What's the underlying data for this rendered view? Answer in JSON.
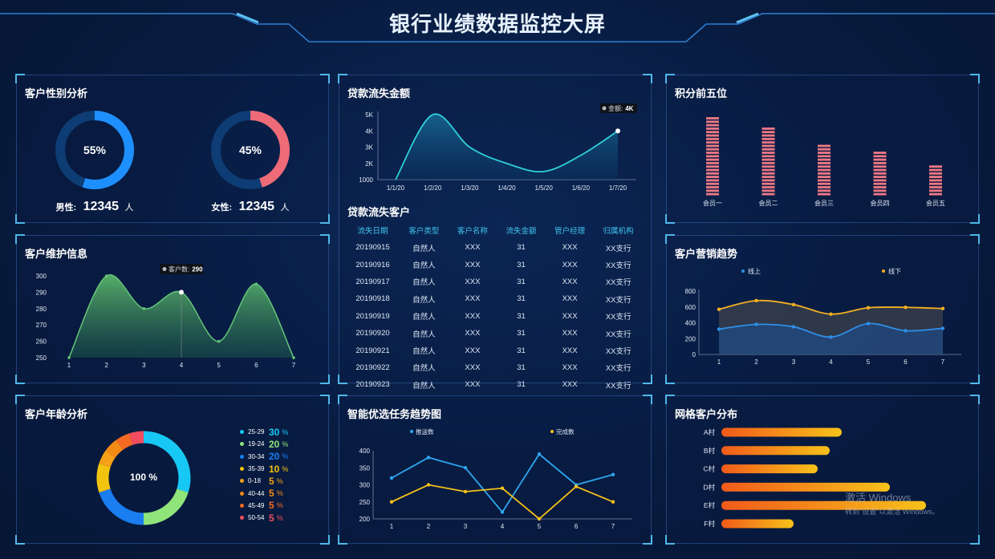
{
  "title": "银行业绩数据监控大屏",
  "gender": {
    "title": "客户性别分析",
    "male": {
      "percent": "55%",
      "label": "男性:",
      "count": "12345",
      "unit": "人",
      "fraction": 0.55,
      "color": "#1e8fff"
    },
    "female": {
      "percent": "45%",
      "label": "女性:",
      "count": "12345",
      "unit": "人",
      "fraction": 0.45,
      "color": "#f06b78"
    }
  },
  "maintenance": {
    "title": "客户维护信息",
    "tooltip": {
      "label": "客户数:",
      "value": "290"
    }
  },
  "age": {
    "title": "客户年龄分析",
    "center": "100 %",
    "items": [
      {
        "label": "25-29",
        "value": "30",
        "unit": "%",
        "color": "#17c8f4",
        "share": 30
      },
      {
        "label": "19-24",
        "value": "20",
        "unit": "%",
        "color": "#8fe57a",
        "share": 20
      },
      {
        "label": "30-34",
        "value": "20",
        "unit": "%",
        "color": "#1a7df0",
        "share": 20
      },
      {
        "label": "35-39",
        "value": "10",
        "unit": "%",
        "color": "#f2c40f",
        "share": 10
      },
      {
        "label": "0-18",
        "value": "5",
        "unit": "%",
        "color": "#f5a017",
        "share": 5
      },
      {
        "label": "40-44",
        "value": "5",
        "unit": "%",
        "color": "#f58b17",
        "share": 5
      },
      {
        "label": "45-49",
        "value": "5",
        "unit": "%",
        "color": "#f56a22",
        "share": 5
      },
      {
        "label": "50-54",
        "value": "5",
        "unit": "%",
        "color": "#f24d5f",
        "share": 5
      }
    ]
  },
  "loan_amount": {
    "title": "贷款流失金额",
    "tooltip": {
      "label": "金额:",
      "value": "4K"
    }
  },
  "loan_customers": {
    "title": "贷款流失客户",
    "columns": [
      "流失日期",
      "客户类型",
      "客户名称",
      "流失金额",
      "管户经理",
      "归属机构"
    ],
    "rows": [
      [
        "20190915",
        "自然人",
        "XXX",
        "31",
        "XXX",
        "XX支行"
      ],
      [
        "20190916",
        "自然人",
        "XXX",
        "31",
        "XXX",
        "XX支行"
      ],
      [
        "20190917",
        "自然人",
        "XXX",
        "31",
        "XXX",
        "XX支行"
      ],
      [
        "20190918",
        "自然人",
        "XXX",
        "31",
        "XXX",
        "XX支行"
      ],
      [
        "20190919",
        "自然人",
        "XXX",
        "31",
        "XXX",
        "XX支行"
      ],
      [
        "20190920",
        "自然人",
        "XXX",
        "31",
        "XXX",
        "XX支行"
      ],
      [
        "20190921",
        "自然人",
        "XXX",
        "31",
        "XXX",
        "XX支行"
      ],
      [
        "20190922",
        "自然人",
        "XXX",
        "31",
        "XXX",
        "XX支行"
      ],
      [
        "20190923",
        "自然人",
        "XXX",
        "31",
        "XXX",
        "XX支行"
      ]
    ]
  },
  "task_trend": {
    "title": "智能优选任务趋势图"
  },
  "points": {
    "title": "积分前五位"
  },
  "marketing": {
    "title": "客户营销趋势"
  },
  "grid": {
    "title": "网格客户分布"
  },
  "watermark": {
    "line1": "激活 Windows",
    "line2": "转到\"设置\"以激活 Windows。"
  },
  "chart_data": [
    {
      "type": "area",
      "panel": "maintenance",
      "x": [
        1,
        2,
        3,
        4,
        5,
        6,
        7
      ],
      "series": [
        {
          "values": [
            250,
            300,
            280,
            290,
            260,
            295,
            250
          ]
        }
      ],
      "ylim": [
        250,
        300
      ],
      "yticks": [
        250,
        260,
        270,
        280,
        290,
        300
      ],
      "color": "#64c47a"
    },
    {
      "type": "area",
      "panel": "loan_amount",
      "categories": [
        "1/1/20",
        "1/2/20",
        "1/3/20",
        "1/4/20",
        "1/5/20",
        "1/6/20",
        "1/7/20"
      ],
      "series": [
        {
          "values": [
            1000,
            5000,
            3000,
            2000,
            1500,
            2500,
            4000
          ]
        }
      ],
      "ylim": [
        1000,
        5000
      ],
      "yticks": [
        "1000",
        "2K",
        "3K",
        "4K",
        "5K"
      ],
      "color": "#2fd0d8"
    },
    {
      "type": "line",
      "panel": "task_trend",
      "x": [
        1,
        2,
        3,
        4,
        5,
        6,
        7
      ],
      "series": [
        {
          "name": "推送数",
          "values": [
            320,
            380,
            350,
            220,
            390,
            300,
            330
          ],
          "color": "#2ea7f0"
        },
        {
          "name": "完成数",
          "values": [
            250,
            300,
            280,
            290,
            200,
            295,
            250
          ],
          "color": "#f7c21a"
        }
      ],
      "ylim": [
        200,
        400
      ],
      "yticks": [
        200,
        250,
        300,
        350,
        400
      ]
    },
    {
      "type": "bar",
      "panel": "points",
      "categories": [
        "会员一",
        "会员二",
        "会员三",
        "会员四",
        "会员五"
      ],
      "values": [
        100,
        88,
        63,
        54,
        38
      ],
      "ylim": [
        0,
        100
      ],
      "color": "#f07884"
    },
    {
      "type": "area",
      "panel": "marketing",
      "x": [
        1,
        2,
        3,
        4,
        5,
        6,
        7
      ],
      "series": [
        {
          "name": "线上",
          "values": [
            320,
            380,
            350,
            220,
            390,
            300,
            330
          ],
          "color": "#2e8fe8"
        },
        {
          "name": "线下",
          "values": [
            570,
            680,
            630,
            510,
            590,
            595,
            580
          ],
          "color": "#f5b021"
        }
      ],
      "ylim": [
        0,
        800
      ],
      "yticks": [
        0,
        200,
        400,
        600,
        800
      ]
    },
    {
      "type": "bar",
      "panel": "grid",
      "orientation": "horizontal",
      "categories": [
        "A村",
        "B村",
        "C村",
        "D村",
        "E村",
        "F村"
      ],
      "values": [
        150,
        135,
        120,
        210,
        255,
        90
      ],
      "xlim": [
        0,
        300
      ]
    }
  ]
}
